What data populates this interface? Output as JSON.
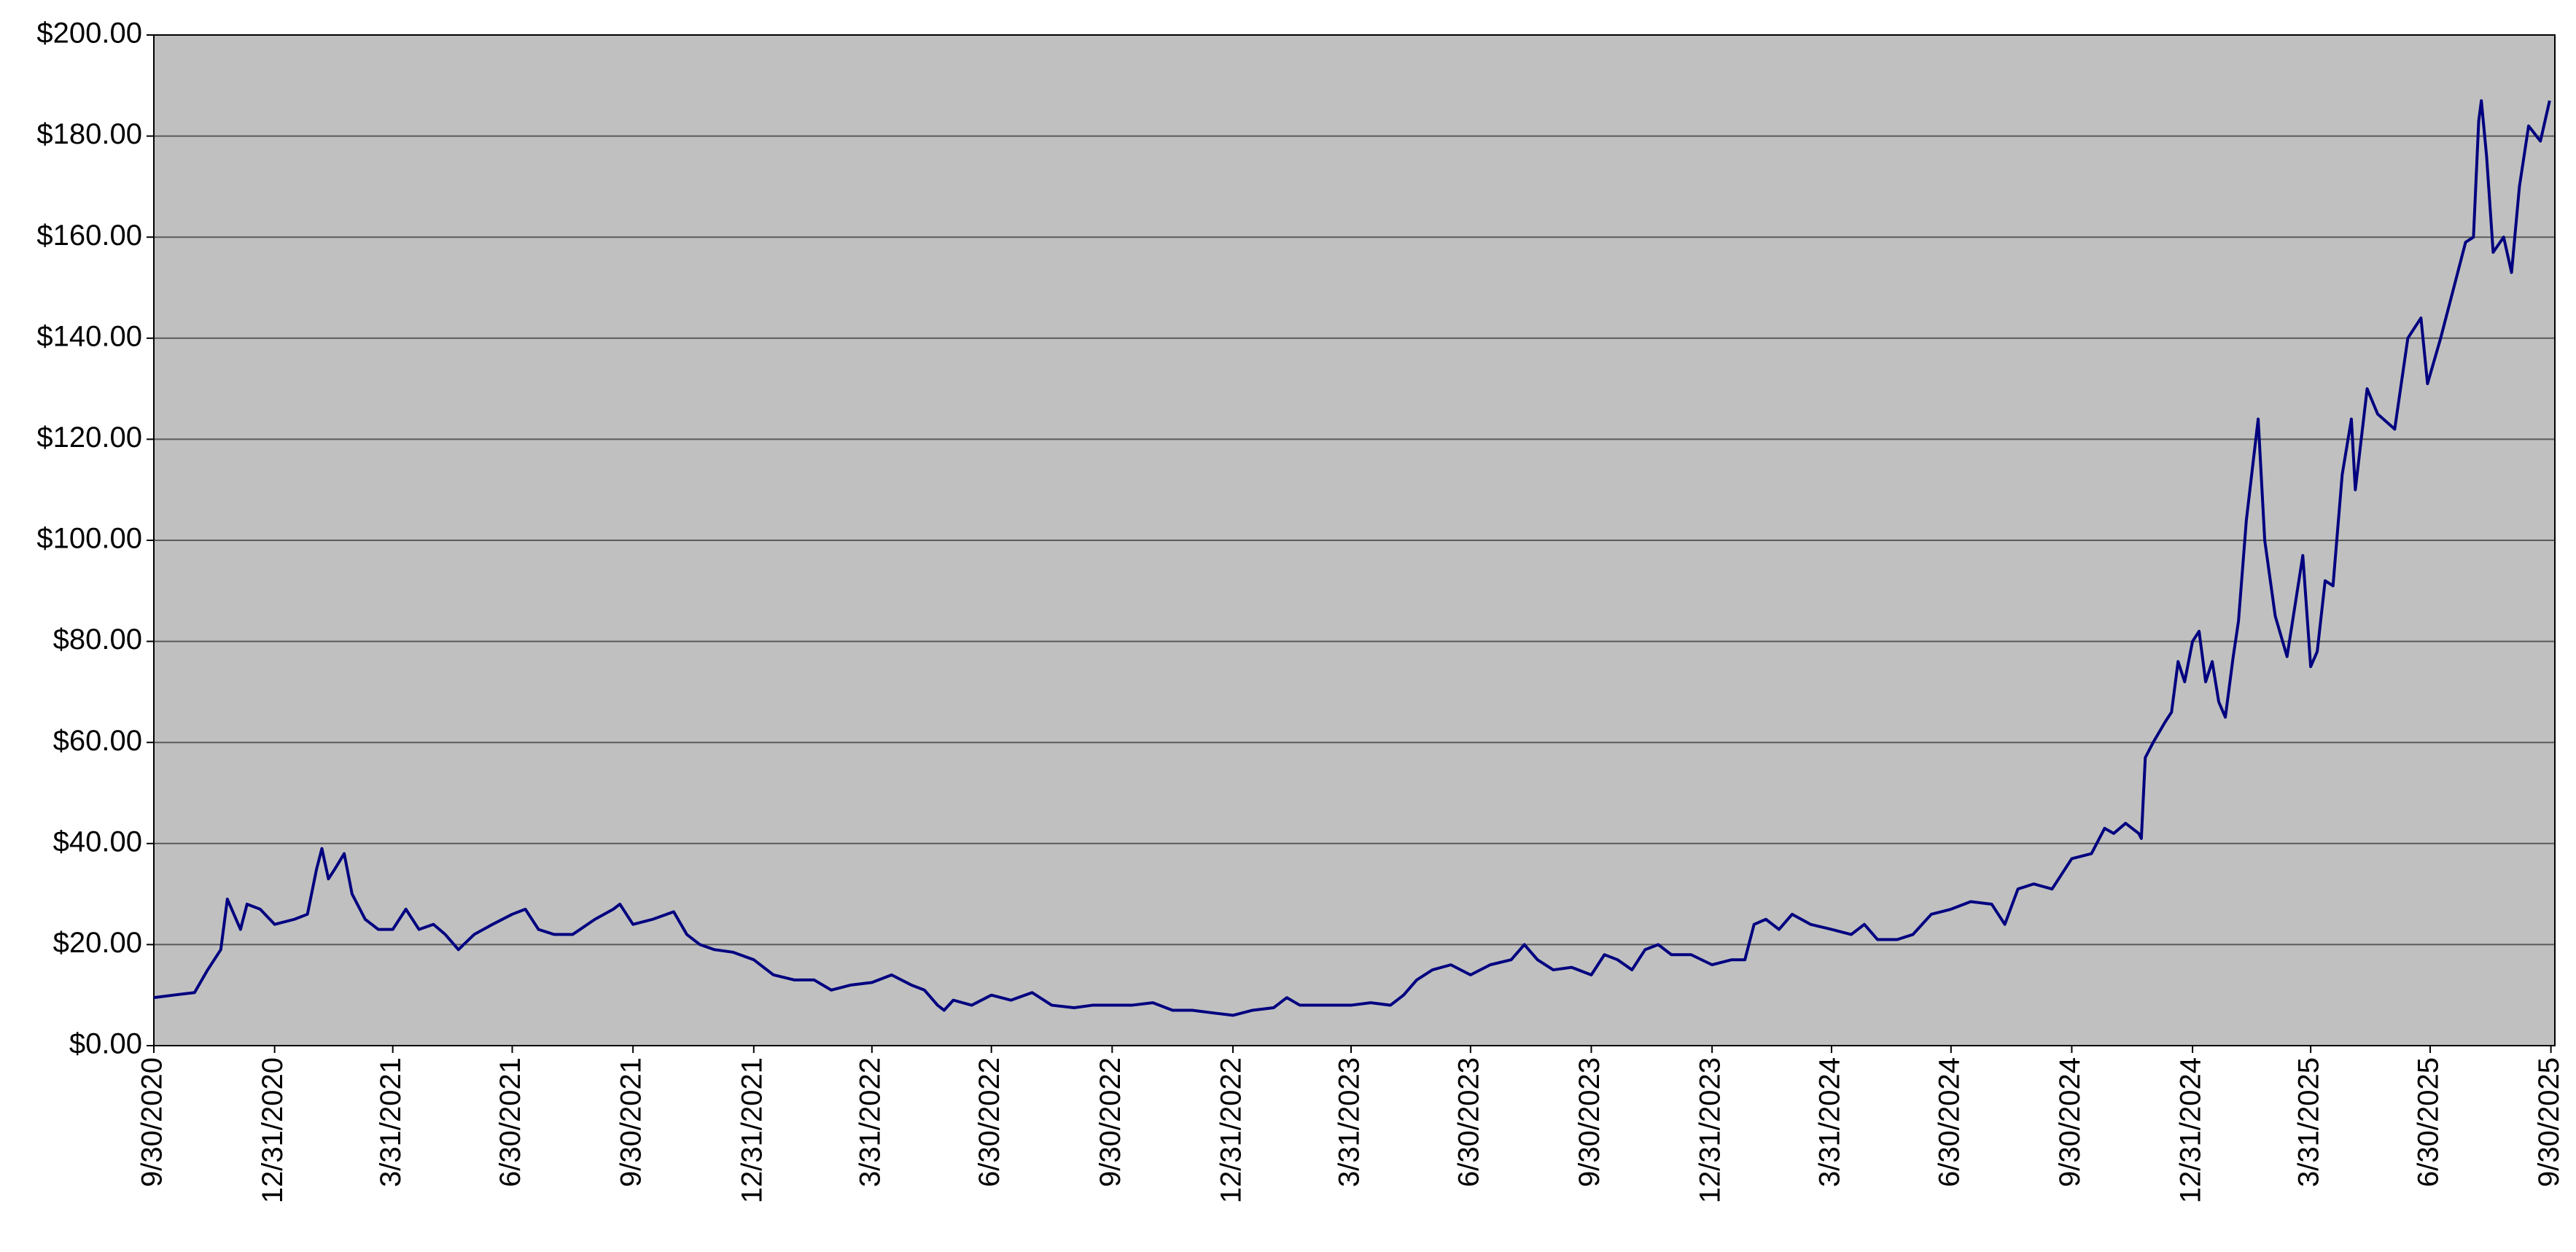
{
  "chart_data": {
    "type": "line",
    "x": [
      "9/30/2020",
      "10/15/2020",
      "10/31/2020",
      "11/10/2020",
      "11/20/2020",
      "11/25/2020",
      "12/5/2020",
      "12/10/2020",
      "12/20/2020",
      "12/31/2020",
      "1/15/2021",
      "1/25/2021",
      "2/1/2021",
      "2/5/2021",
      "2/10/2021",
      "2/15/2021",
      "2/22/2021",
      "2/28/2021",
      "3/10/2021",
      "3/20/2021",
      "3/31/2021",
      "4/10/2021",
      "4/20/2021",
      "5/1/2021",
      "5/10/2021",
      "5/20/2021",
      "6/1/2021",
      "6/15/2021",
      "6/30/2021",
      "7/10/2021",
      "7/20/2021",
      "8/1/2021",
      "8/15/2021",
      "9/1/2021",
      "9/15/2021",
      "9/20/2021",
      "9/30/2021",
      "10/15/2021",
      "10/31/2021",
      "11/10/2021",
      "11/20/2021",
      "12/1/2021",
      "12/15/2021",
      "12/31/2021",
      "1/15/2022",
      "1/31/2022",
      "2/15/2022",
      "2/28/2022",
      "3/15/2022",
      "3/31/2022",
      "4/15/2022",
      "4/30/2022",
      "5/10/2022",
      "5/20/2022",
      "5/25/2022",
      "6/1/2022",
      "6/15/2022",
      "6/30/2022",
      "7/15/2022",
      "7/31/2022",
      "8/15/2022",
      "9/1/2022",
      "9/15/2022",
      "9/30/2022",
      "10/15/2022",
      "10/31/2022",
      "11/15/2022",
      "11/30/2022",
      "12/15/2022",
      "12/31/2022",
      "1/15/2023",
      "1/31/2023",
      "2/10/2023",
      "2/20/2023",
      "3/1/2023",
      "3/15/2023",
      "3/31/2023",
      "4/15/2023",
      "4/30/2023",
      "5/10/2023",
      "5/20/2023",
      "6/1/2023",
      "6/15/2023",
      "6/30/2023",
      "7/15/2023",
      "7/31/2023",
      "8/10/2023",
      "8/20/2023",
      "9/1/2023",
      "9/15/2023",
      "9/30/2023",
      "10/10/2023",
      "10/20/2023",
      "10/31/2023",
      "11/10/2023",
      "11/20/2023",
      "11/30/2023",
      "12/15/2023",
      "12/31/2023",
      "1/15/2024",
      "1/25/2024",
      "2/1/2024",
      "2/10/2024",
      "2/20/2024",
      "3/1/2024",
      "3/15/2024",
      "3/31/2024",
      "4/15/2024",
      "4/25/2024",
      "5/5/2024",
      "5/20/2024",
      "6/1/2024",
      "6/15/2024",
      "6/30/2024",
      "7/15/2024",
      "7/31/2024",
      "8/10/2024",
      "8/20/2024",
      "9/1/2024",
      "9/15/2024",
      "9/30/2024",
      "10/15/2024",
      "10/25/2024",
      "11/1/2024",
      "11/10/2024",
      "11/20/2024",
      "11/22/2024",
      "11/25/2024",
      "12/1/2024",
      "12/10/2024",
      "12/15/2024",
      "12/20/2024",
      "12/25/2024",
      "12/31/2024",
      "1/5/2025",
      "1/10/2025",
      "1/15/2025",
      "1/20/2025",
      "1/25/2025",
      "1/31/2025",
      "2/4/2025",
      "2/10/2025",
      "2/19/2025",
      "2/24/2025",
      "3/4/2025",
      "3/13/2025",
      "3/25/2025",
      "3/31/2025",
      "4/5/2025",
      "4/11/2025",
      "4/17/2025",
      "4/24/2025",
      "5/1/2025",
      "5/4/2025",
      "5/13/2025",
      "5/21/2025",
      "6/3/2025",
      "6/13/2025",
      "6/23/2025",
      "6/28/2025",
      "7/8/2025",
      "7/21/2025",
      "7/27/2025",
      "8/2/2025",
      "8/6/2025",
      "8/8/2025",
      "8/12/2025",
      "8/17/2025",
      "8/25/2025",
      "8/31/2025",
      "9/6/2025",
      "9/13/2025",
      "9/22/2025",
      "9/29/2025"
    ],
    "series": [
      {
        "color": "#000080",
        "values": [
          9.5,
          10,
          10.5,
          15,
          19,
          29,
          23,
          28,
          27,
          24,
          25,
          26,
          35,
          39,
          33,
          35,
          38,
          30,
          25,
          23,
          23,
          27,
          23,
          24,
          22,
          19,
          22,
          24,
          26,
          27,
          23,
          22,
          22,
          25,
          27,
          28,
          24,
          25,
          26.5,
          22,
          20,
          19,
          18.5,
          17,
          14,
          13,
          13,
          11,
          12,
          12.5,
          14,
          12,
          11,
          8,
          7,
          9,
          8,
          10,
          9,
          10.5,
          8,
          7.5,
          8,
          8,
          8,
          8.5,
          7,
          7,
          6.5,
          6,
          7,
          7.5,
          9.5,
          8,
          8,
          8,
          8,
          8.5,
          8,
          10,
          13,
          15,
          16,
          14,
          16,
          17,
          20,
          17,
          15,
          15.5,
          14,
          18,
          17,
          15,
          19,
          20,
          18,
          18,
          16,
          17,
          17,
          24,
          25,
          23,
          26,
          24,
          23,
          22,
          24,
          21,
          21,
          22,
          26,
          27,
          28.5,
          28,
          24,
          31,
          32,
          31,
          37,
          38,
          43,
          42,
          44,
          42,
          41,
          57,
          60,
          64,
          66,
          76,
          72,
          80,
          82,
          72,
          76,
          68,
          65,
          77,
          84,
          104,
          124,
          100,
          85,
          77,
          97,
          75,
          78,
          92,
          91,
          113,
          124,
          110,
          130,
          125,
          122,
          140,
          144,
          131,
          140,
          153,
          159,
          160,
          183,
          187,
          176,
          157,
          160,
          153,
          170,
          182,
          179,
          187
        ]
      }
    ],
    "xlim": [
      "9/30/2020",
      "10/3/2025"
    ],
    "xticks": [
      "9/30/2020",
      "12/31/2020",
      "3/31/2021",
      "6/30/2021",
      "9/30/2021",
      "12/31/2021",
      "3/31/2022",
      "6/30/2022",
      "9/30/2022",
      "12/31/2022",
      "3/31/2023",
      "6/30/2023",
      "9/30/2023",
      "12/31/2023",
      "3/31/2024",
      "6/30/2024",
      "9/30/2024",
      "12/31/2024",
      "3/31/2025",
      "6/30/2025",
      "9/30/2025"
    ],
    "ylim": [
      0,
      200
    ],
    "yticks": [
      {
        "value": 0,
        "label": "$0.00"
      },
      {
        "value": 20,
        "label": "$20.00"
      },
      {
        "value": 40,
        "label": "$40.00"
      },
      {
        "value": 60,
        "label": "$60.00"
      },
      {
        "value": 80,
        "label": "$80.00"
      },
      {
        "value": 100,
        "label": "$100.00"
      },
      {
        "value": 120,
        "label": "$120.00"
      },
      {
        "value": 140,
        "label": "$140.00"
      },
      {
        "value": 160,
        "label": "$160.00"
      },
      {
        "value": 180,
        "label": "$180.00"
      },
      {
        "value": 200,
        "label": "$200.00"
      }
    ],
    "grid": true
  }
}
